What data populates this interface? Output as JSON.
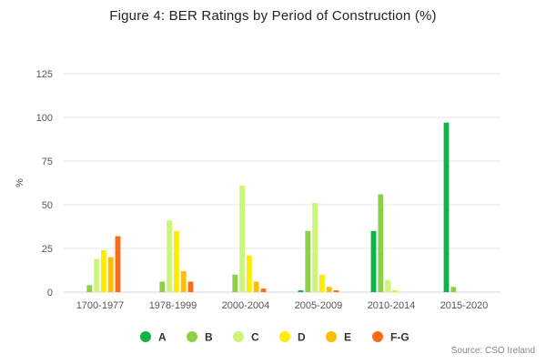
{
  "chart_data": {
    "type": "bar",
    "title": "Figure 4: BER Ratings by Period of Construction (%)",
    "ylabel": "%",
    "xlabel": "",
    "ylim": [
      0,
      125
    ],
    "yticks": [
      0,
      25,
      50,
      75,
      100,
      125
    ],
    "grid": true,
    "legend_position": "bottom",
    "source": "Source: CSO Ireland",
    "categories": [
      "1700-1977",
      "1978-1999",
      "2000-2004",
      "2005-2009",
      "2010-2014",
      "2015-2020"
    ],
    "series": [
      {
        "name": "A",
        "color": "#12b04b",
        "values": [
          0,
          0,
          0,
          1,
          35,
          97
        ]
      },
      {
        "name": "B",
        "color": "#8cd048",
        "values": [
          4,
          6,
          10,
          35,
          56,
          3
        ]
      },
      {
        "name": "C",
        "color": "#cdf57a",
        "values": [
          19,
          41,
          61,
          51,
          7,
          0
        ]
      },
      {
        "name": "D",
        "color": "#ffed00",
        "values": [
          24,
          35,
          21,
          10,
          1,
          0
        ]
      },
      {
        "name": "E",
        "color": "#ffbe00",
        "values": [
          20,
          12,
          6,
          3,
          0,
          0
        ]
      },
      {
        "name": "F-G",
        "color": "#ff6a13",
        "values": [
          32,
          6,
          2,
          1,
          0,
          0
        ]
      }
    ]
  }
}
